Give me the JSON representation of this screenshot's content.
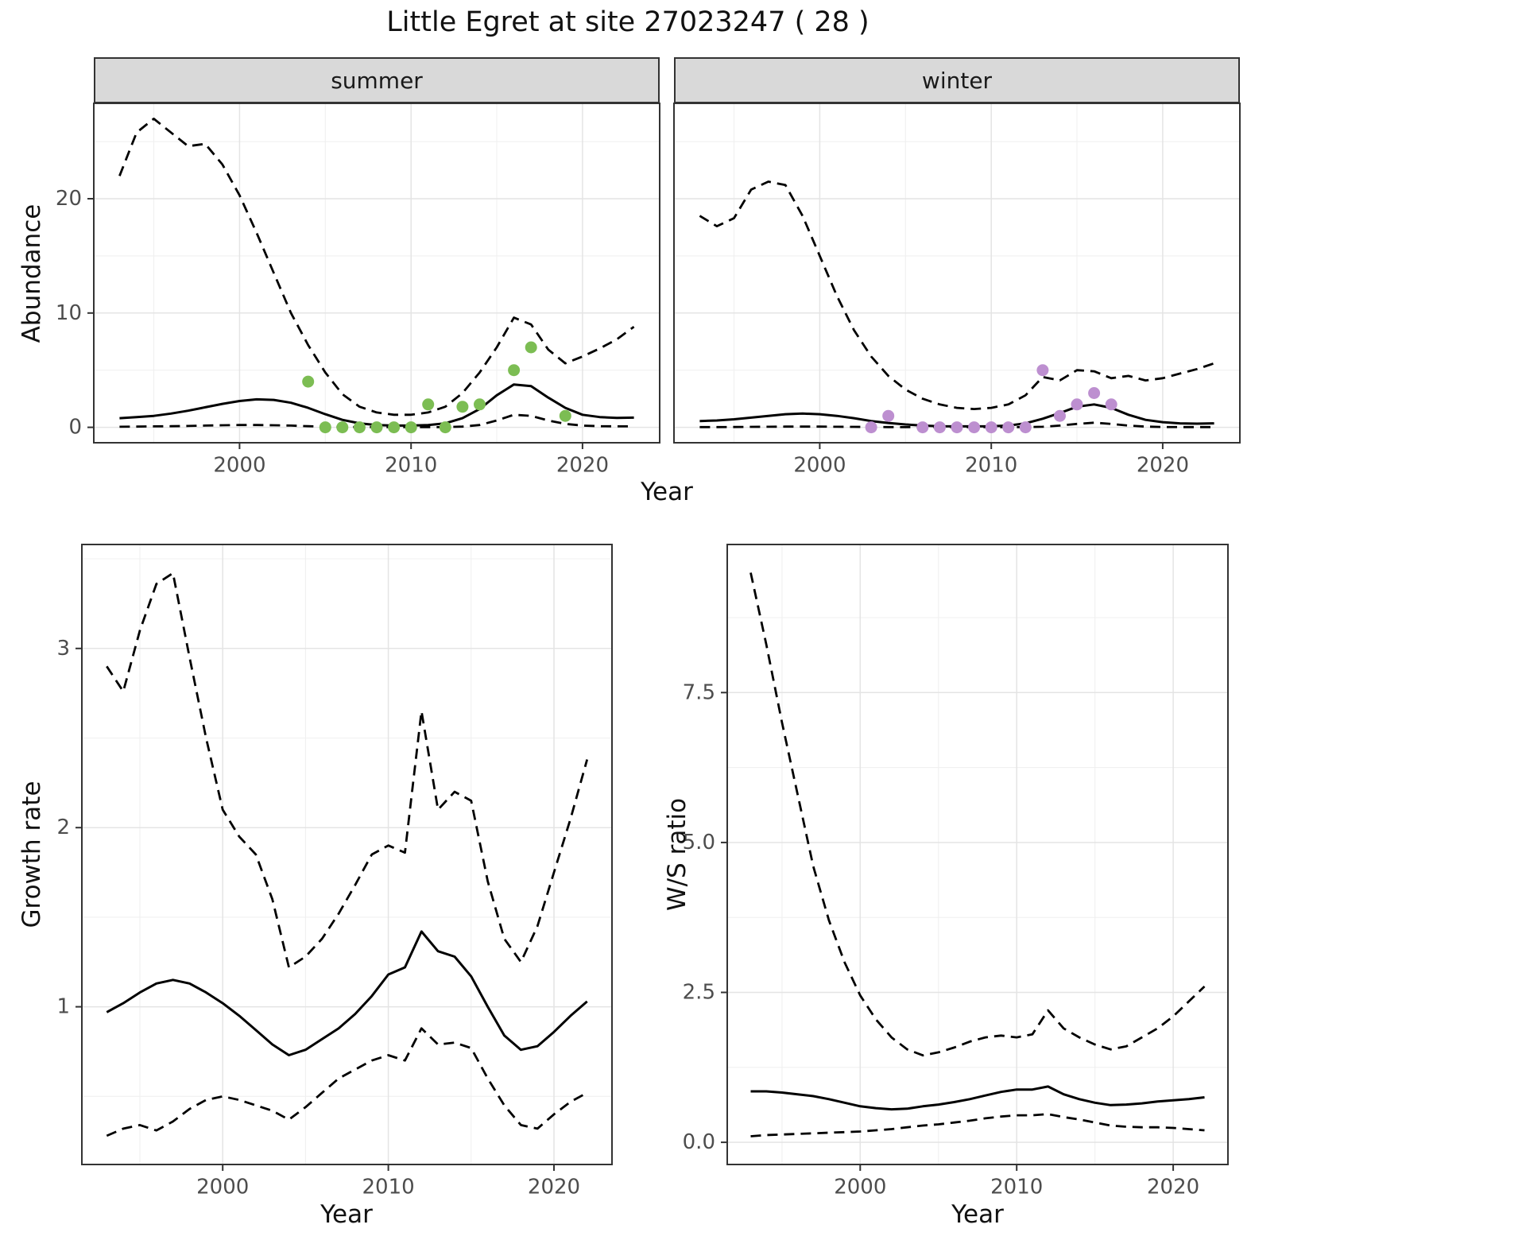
{
  "title": "Little Egret at site 27023247 ( 28 )",
  "facets": {
    "summer": "summer",
    "winter": "winter"
  },
  "axes": {
    "abundance_label": "Abundance",
    "year_label": "Year",
    "growth_label": "Growth rate",
    "ws_label": "W/S ratio"
  },
  "colors": {
    "line": "#000000",
    "summer_point": "#7cbd53",
    "winter_point": "#bd8fd0",
    "strip_bg": "#d9d9d9",
    "panel_border": "#333333",
    "grid_major": "#e4e4e4",
    "grid_minor": "#f0f0f0",
    "tick_label": "#4d4d4d"
  },
  "chart_data": [
    {
      "key": "abundance_summer",
      "type": "line",
      "facet": "summer",
      "title": "summer",
      "xlabel": "Year",
      "ylabel": "Abundance",
      "xlim": [
        1991.5,
        2024.5
      ],
      "ylim": [
        -1.35,
        28.35
      ],
      "xticks": [
        2000,
        2010,
        2020
      ],
      "xtick_labels": [
        "2000",
        "2010",
        "2020"
      ],
      "yticks": [
        0,
        10,
        20
      ],
      "ytick_labels": [
        "0",
        "10",
        "20"
      ],
      "x": [
        1993,
        1994,
        1995,
        1996,
        1997,
        1998,
        1999,
        2000,
        2001,
        2002,
        2003,
        2004,
        2005,
        2006,
        2007,
        2008,
        2009,
        2010,
        2011,
        2012,
        2013,
        2014,
        2015,
        2016,
        2017,
        2018,
        2019,
        2020,
        2021,
        2022,
        2023
      ],
      "series": [
        {
          "name": "fit",
          "style": "solid",
          "values": [
            0.8,
            0.9,
            1.0,
            1.2,
            1.45,
            1.75,
            2.05,
            2.3,
            2.45,
            2.4,
            2.15,
            1.7,
            1.15,
            0.65,
            0.35,
            0.2,
            0.15,
            0.15,
            0.2,
            0.35,
            0.8,
            1.6,
            2.8,
            3.75,
            3.6,
            2.6,
            1.7,
            1.1,
            0.9,
            0.82,
            0.85
          ]
        },
        {
          "name": "upper_ci",
          "style": "dashed",
          "values": [
            22,
            25.8,
            27,
            25.8,
            24.6,
            24.8,
            23,
            20.3,
            17,
            13.5,
            10,
            7.2,
            4.8,
            2.9,
            1.8,
            1.3,
            1.1,
            1.1,
            1.3,
            1.8,
            3,
            4.8,
            7,
            9.6,
            9,
            6.8,
            5.6,
            6.2,
            6.9,
            7.7,
            8.8
          ]
        },
        {
          "name": "lower_ci",
          "style": "dashed",
          "values": [
            0.05,
            0.06,
            0.08,
            0.1,
            0.12,
            0.15,
            0.18,
            0.2,
            0.2,
            0.18,
            0.15,
            0.1,
            0.06,
            0.03,
            0.02,
            0.01,
            0.01,
            0.01,
            0.01,
            0.02,
            0.06,
            0.2,
            0.6,
            1.1,
            1.0,
            0.6,
            0.3,
            0.15,
            0.1,
            0.08,
            0.08
          ]
        }
      ],
      "points": {
        "name": "summer-observations",
        "color": "#7cbd53",
        "x": [
          2004,
          2005,
          2006,
          2007,
          2008,
          2009,
          2010,
          2011,
          2012,
          2013,
          2014,
          2016,
          2017,
          2019
        ],
        "y": [
          4,
          0,
          0,
          0,
          0,
          0,
          0,
          2,
          0,
          1.8,
          2,
          5,
          7,
          1
        ]
      }
    },
    {
      "key": "abundance_winter",
      "type": "line",
      "facet": "winter",
      "title": "winter",
      "xlabel": "Year",
      "ylabel": "Abundance",
      "xlim": [
        1991.5,
        2024.5
      ],
      "ylim": [
        -1.35,
        28.35
      ],
      "xticks": [
        2000,
        2010,
        2020
      ],
      "xtick_labels": [
        "2000",
        "2010",
        "2020"
      ],
      "yticks": [
        0,
        10,
        20
      ],
      "ytick_labels": [
        "0",
        "10",
        "20"
      ],
      "x": [
        1993,
        1994,
        1995,
        1996,
        1997,
        1998,
        1999,
        2000,
        2001,
        2002,
        2003,
        2004,
        2005,
        2006,
        2007,
        2008,
        2009,
        2010,
        2011,
        2012,
        2013,
        2014,
        2015,
        2016,
        2017,
        2018,
        2019,
        2020,
        2021,
        2022,
        2023
      ],
      "series": [
        {
          "name": "fit",
          "style": "solid",
          "values": [
            0.55,
            0.6,
            0.7,
            0.85,
            1.0,
            1.15,
            1.2,
            1.15,
            1.0,
            0.8,
            0.55,
            0.38,
            0.25,
            0.15,
            0.1,
            0.08,
            0.08,
            0.1,
            0.15,
            0.35,
            0.75,
            1.25,
            1.8,
            2.0,
            1.7,
            1.1,
            0.65,
            0.45,
            0.35,
            0.32,
            0.35
          ]
        },
        {
          "name": "upper_ci",
          "style": "dashed",
          "values": [
            18.5,
            17.6,
            18.3,
            20.8,
            21.5,
            21.2,
            18.5,
            15.0,
            11.5,
            8.5,
            6.2,
            4.5,
            3.3,
            2.5,
            2.0,
            1.7,
            1.6,
            1.7,
            2.0,
            2.8,
            4.4,
            4.1,
            5.0,
            4.9,
            4.3,
            4.5,
            4.1,
            4.3,
            4.7,
            5.1,
            5.6
          ]
        },
        {
          "name": "lower_ci",
          "style": "dashed",
          "values": [
            0.02,
            0.02,
            0.03,
            0.04,
            0.05,
            0.06,
            0.06,
            0.06,
            0.05,
            0.04,
            0.03,
            0.02,
            0.01,
            0.01,
            0.01,
            0.01,
            0.01,
            0.01,
            0.01,
            0.02,
            0.05,
            0.15,
            0.3,
            0.4,
            0.3,
            0.15,
            0.06,
            0.03,
            0.02,
            0.02,
            0.02
          ]
        }
      ],
      "points": {
        "name": "winter-observations",
        "color": "#bd8fd0",
        "x": [
          2003,
          2004,
          2006,
          2007,
          2008,
          2009,
          2010,
          2011,
          2012,
          2013,
          2014,
          2015,
          2016,
          2017
        ],
        "y": [
          0,
          1,
          0,
          0,
          0,
          0,
          0,
          0,
          0,
          5,
          1,
          2,
          3,
          2
        ]
      }
    },
    {
      "key": "growth_rate",
      "type": "line",
      "facet": null,
      "title": "Growth rate",
      "xlabel": "Year",
      "ylabel": "Growth rate",
      "xlim": [
        1991.5,
        2023.5
      ],
      "ylim": [
        0.12,
        3.58
      ],
      "xticks": [
        2000,
        2010,
        2020
      ],
      "xtick_labels": [
        "2000",
        "2010",
        "2020"
      ],
      "yticks": [
        1,
        2,
        3
      ],
      "ytick_labels": [
        "1",
        "2",
        "3"
      ],
      "x": [
        1993,
        1994,
        1995,
        1996,
        1997,
        1998,
        1999,
        2000,
        2001,
        2002,
        2003,
        2004,
        2005,
        2006,
        2007,
        2008,
        2009,
        2010,
        2011,
        2012,
        2013,
        2014,
        2015,
        2016,
        2017,
        2018,
        2019,
        2020,
        2021,
        2022
      ],
      "series": [
        {
          "name": "fit",
          "style": "solid",
          "values": [
            0.97,
            1.02,
            1.08,
            1.13,
            1.15,
            1.13,
            1.08,
            1.02,
            0.95,
            0.87,
            0.79,
            0.73,
            0.76,
            0.82,
            0.88,
            0.96,
            1.06,
            1.18,
            1.22,
            1.42,
            1.31,
            1.28,
            1.17,
            1.0,
            0.84,
            0.76,
            0.78,
            0.86,
            0.95,
            1.03
          ]
        },
        {
          "name": "upper_ci",
          "style": "dashed",
          "values": [
            2.9,
            2.76,
            3.1,
            3.36,
            3.42,
            2.95,
            2.5,
            2.1,
            1.95,
            1.85,
            1.6,
            1.22,
            1.28,
            1.38,
            1.52,
            1.68,
            1.85,
            1.9,
            1.86,
            2.65,
            2.1,
            2.2,
            2.15,
            1.7,
            1.38,
            1.25,
            1.45,
            1.75,
            2.05,
            2.38
          ]
        },
        {
          "name": "lower_ci",
          "style": "dashed",
          "values": [
            0.28,
            0.32,
            0.34,
            0.31,
            0.36,
            0.43,
            0.48,
            0.5,
            0.48,
            0.45,
            0.42,
            0.37,
            0.44,
            0.52,
            0.6,
            0.65,
            0.7,
            0.73,
            0.7,
            0.88,
            0.79,
            0.8,
            0.77,
            0.6,
            0.45,
            0.34,
            0.32,
            0.4,
            0.47,
            0.52
          ]
        }
      ],
      "points": null
    },
    {
      "key": "ws_ratio",
      "type": "line",
      "facet": null,
      "title": "W/S ratio",
      "xlabel": "Year",
      "ylabel": "W/S ratio",
      "xlim": [
        1991.5,
        2023.5
      ],
      "ylim": [
        -0.37,
        9.97
      ],
      "xticks": [
        2000,
        2010,
        2020
      ],
      "xtick_labels": [
        "2000",
        "2010",
        "2020"
      ],
      "yticks": [
        0,
        2.5,
        5,
        7.5
      ],
      "ytick_labels": [
        "0.0",
        "2.5",
        "5.0",
        "7.5"
      ],
      "x": [
        1993,
        1994,
        1995,
        1996,
        1997,
        1998,
        1999,
        2000,
        2001,
        2002,
        2003,
        2004,
        2005,
        2006,
        2007,
        2008,
        2009,
        2010,
        2011,
        2012,
        2013,
        2014,
        2015,
        2016,
        2017,
        2018,
        2019,
        2020,
        2021,
        2022
      ],
      "series": [
        {
          "name": "fit",
          "style": "solid",
          "values": [
            0.85,
            0.85,
            0.83,
            0.8,
            0.77,
            0.72,
            0.66,
            0.6,
            0.57,
            0.55,
            0.56,
            0.6,
            0.63,
            0.67,
            0.72,
            0.78,
            0.84,
            0.88,
            0.88,
            0.93,
            0.8,
            0.72,
            0.66,
            0.62,
            0.63,
            0.65,
            0.68,
            0.7,
            0.72,
            0.75
          ]
        },
        {
          "name": "upper_ci",
          "style": "dashed",
          "values": [
            9.5,
            8.3,
            7.0,
            5.8,
            4.6,
            3.7,
            3.0,
            2.45,
            2.05,
            1.75,
            1.55,
            1.45,
            1.5,
            1.58,
            1.68,
            1.75,
            1.78,
            1.75,
            1.8,
            2.2,
            1.9,
            1.75,
            1.63,
            1.55,
            1.6,
            1.75,
            1.9,
            2.1,
            2.35,
            2.6
          ]
        },
        {
          "name": "lower_ci",
          "style": "dashed",
          "values": [
            0.1,
            0.12,
            0.13,
            0.14,
            0.15,
            0.16,
            0.17,
            0.18,
            0.2,
            0.22,
            0.25,
            0.28,
            0.3,
            0.33,
            0.36,
            0.4,
            0.43,
            0.45,
            0.45,
            0.47,
            0.42,
            0.38,
            0.33,
            0.28,
            0.26,
            0.25,
            0.25,
            0.24,
            0.22,
            0.2
          ]
        }
      ],
      "points": null
    }
  ]
}
